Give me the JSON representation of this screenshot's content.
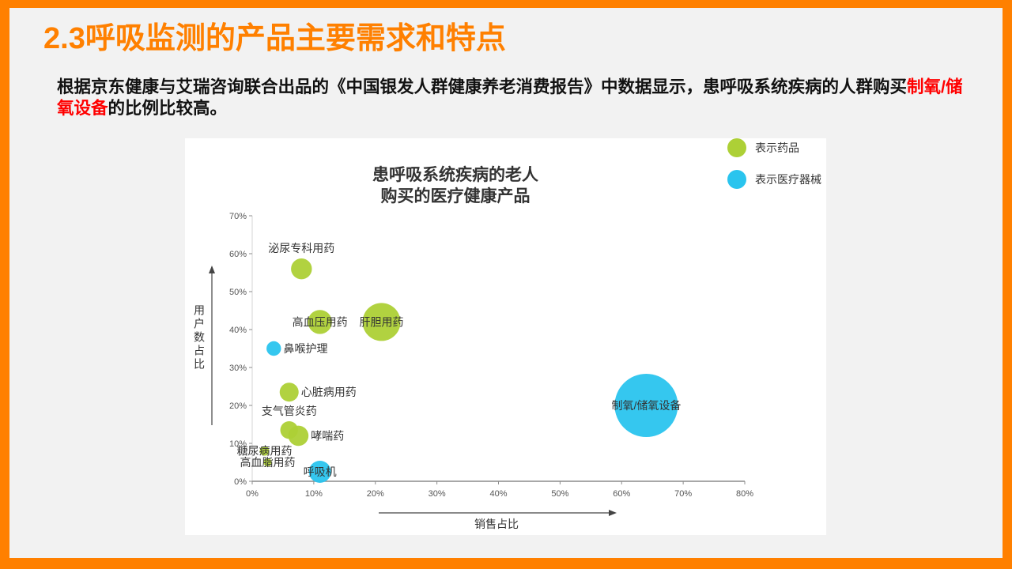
{
  "slide": {
    "title": "2.3呼吸监测的产品主要需求和特点",
    "paragraph": {
      "before": "根据京东健康与艾瑞咨询联合出品的《中国银发人群健康养老消费报告》中数据显示，患呼吸系统疾病的人群购买",
      "highlight": "制氧/储氧设备",
      "after": "的比例比较高。"
    }
  },
  "colors": {
    "frame": "#FF8000",
    "title": "#FF8000",
    "highlight": "#FF0000",
    "background": "#F2F2F2"
  },
  "chart_data": {
    "type": "scatter",
    "title": [
      "患呼吸系统疾病的老人",
      "购买的医疗健康产品"
    ],
    "xlabel": "销售占比",
    "ylabel": "用户数占比",
    "xlim": [
      0,
      80
    ],
    "ylim": [
      0,
      70
    ],
    "x_tick_labels": [
      "0%",
      "10%",
      "20%",
      "30%",
      "40%",
      "50%",
      "60%",
      "70%",
      "80%"
    ],
    "y_tick_labels": [
      "0%",
      "10%",
      "20%",
      "30%",
      "40%",
      "50%",
      "60%",
      "70%"
    ],
    "grid": false,
    "legend_position": "top-right",
    "series": [
      {
        "name": "表示药品",
        "color": "#ADD036",
        "points": [
          {
            "label": "泌尿专科用药",
            "x": 8,
            "y": 56,
            "bubble_size": 0.33,
            "label_position": "above"
          },
          {
            "label": "高血压用药",
            "x": 11,
            "y": 42,
            "bubble_size": 0.38,
            "label_position": "center"
          },
          {
            "label": "肝胆用药",
            "x": 21,
            "y": 42,
            "bubble_size": 0.6,
            "label_position": "center"
          },
          {
            "label": "心脏病用药",
            "x": 6,
            "y": 23.5,
            "bubble_size": 0.3,
            "label_position": "right"
          },
          {
            "label": "支气管炎药",
            "x": 6,
            "y": 13.5,
            "bubble_size": 0.28,
            "label_position": "above"
          },
          {
            "label": "哮喘药",
            "x": 7.5,
            "y": 12,
            "bubble_size": 0.32,
            "label_position": "right"
          },
          {
            "label": "糖尿病用药",
            "x": 2,
            "y": 8,
            "bubble_size": 0.15,
            "label_position": "center"
          },
          {
            "label": "高血脂用药",
            "x": 2.5,
            "y": 5,
            "bubble_size": 0.13,
            "label_position": "center"
          }
        ]
      },
      {
        "name": "表示医疗器械",
        "color": "#2AC4EE",
        "points": [
          {
            "label": "鼻喉护理",
            "x": 3.5,
            "y": 35,
            "bubble_size": 0.23,
            "label_position": "right"
          },
          {
            "label": "呼吸机",
            "x": 11,
            "y": 2.5,
            "bubble_size": 0.35,
            "label_position": "center"
          },
          {
            "label": "制氧/储氧设备",
            "x": 64,
            "y": 20,
            "bubble_size": 1.0,
            "label_position": "center"
          }
        ]
      }
    ]
  }
}
